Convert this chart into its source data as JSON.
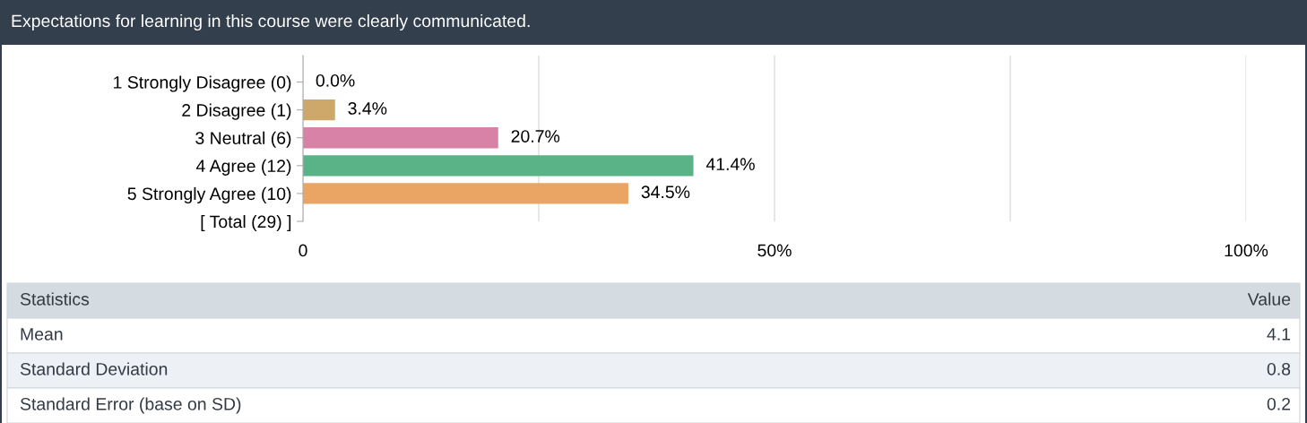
{
  "chart_data": {
    "type": "bar",
    "orientation": "horizontal",
    "title": "Expectations for learning in this course were clearly communicated.",
    "categories": [
      "1 Strongly Disagree (0)",
      "2 Disagree (1)",
      "3 Neutral (6)",
      "4 Agree (12)",
      "5 Strongly Agree (10)",
      "[ Total (29) ]"
    ],
    "values": [
      0.0,
      3.4,
      20.7,
      41.4,
      34.5,
      null
    ],
    "colors": [
      "#7f9fcf",
      "#cda86a",
      "#d882a8",
      "#5ab386",
      "#eaa464",
      null
    ],
    "value_labels": [
      "0.0%",
      "3.4%",
      "20.7%",
      "41.4%",
      "34.5%",
      null
    ],
    "xlim": [
      0,
      100
    ],
    "xticks": [
      0,
      {
        "value": 25,
        "label": null
      },
      {
        "value": 50,
        "label": "50%"
      },
      {
        "value": 75,
        "label": null
      },
      {
        "value": 100,
        "label": "100%"
      }
    ],
    "grid": "x",
    "annotations": [
      "Statistics",
      "Value",
      "Mean",
      "4.1",
      "Standard Deviation",
      "0.8",
      "Standard Error (base on SD)",
      "0.2"
    ]
  }
}
